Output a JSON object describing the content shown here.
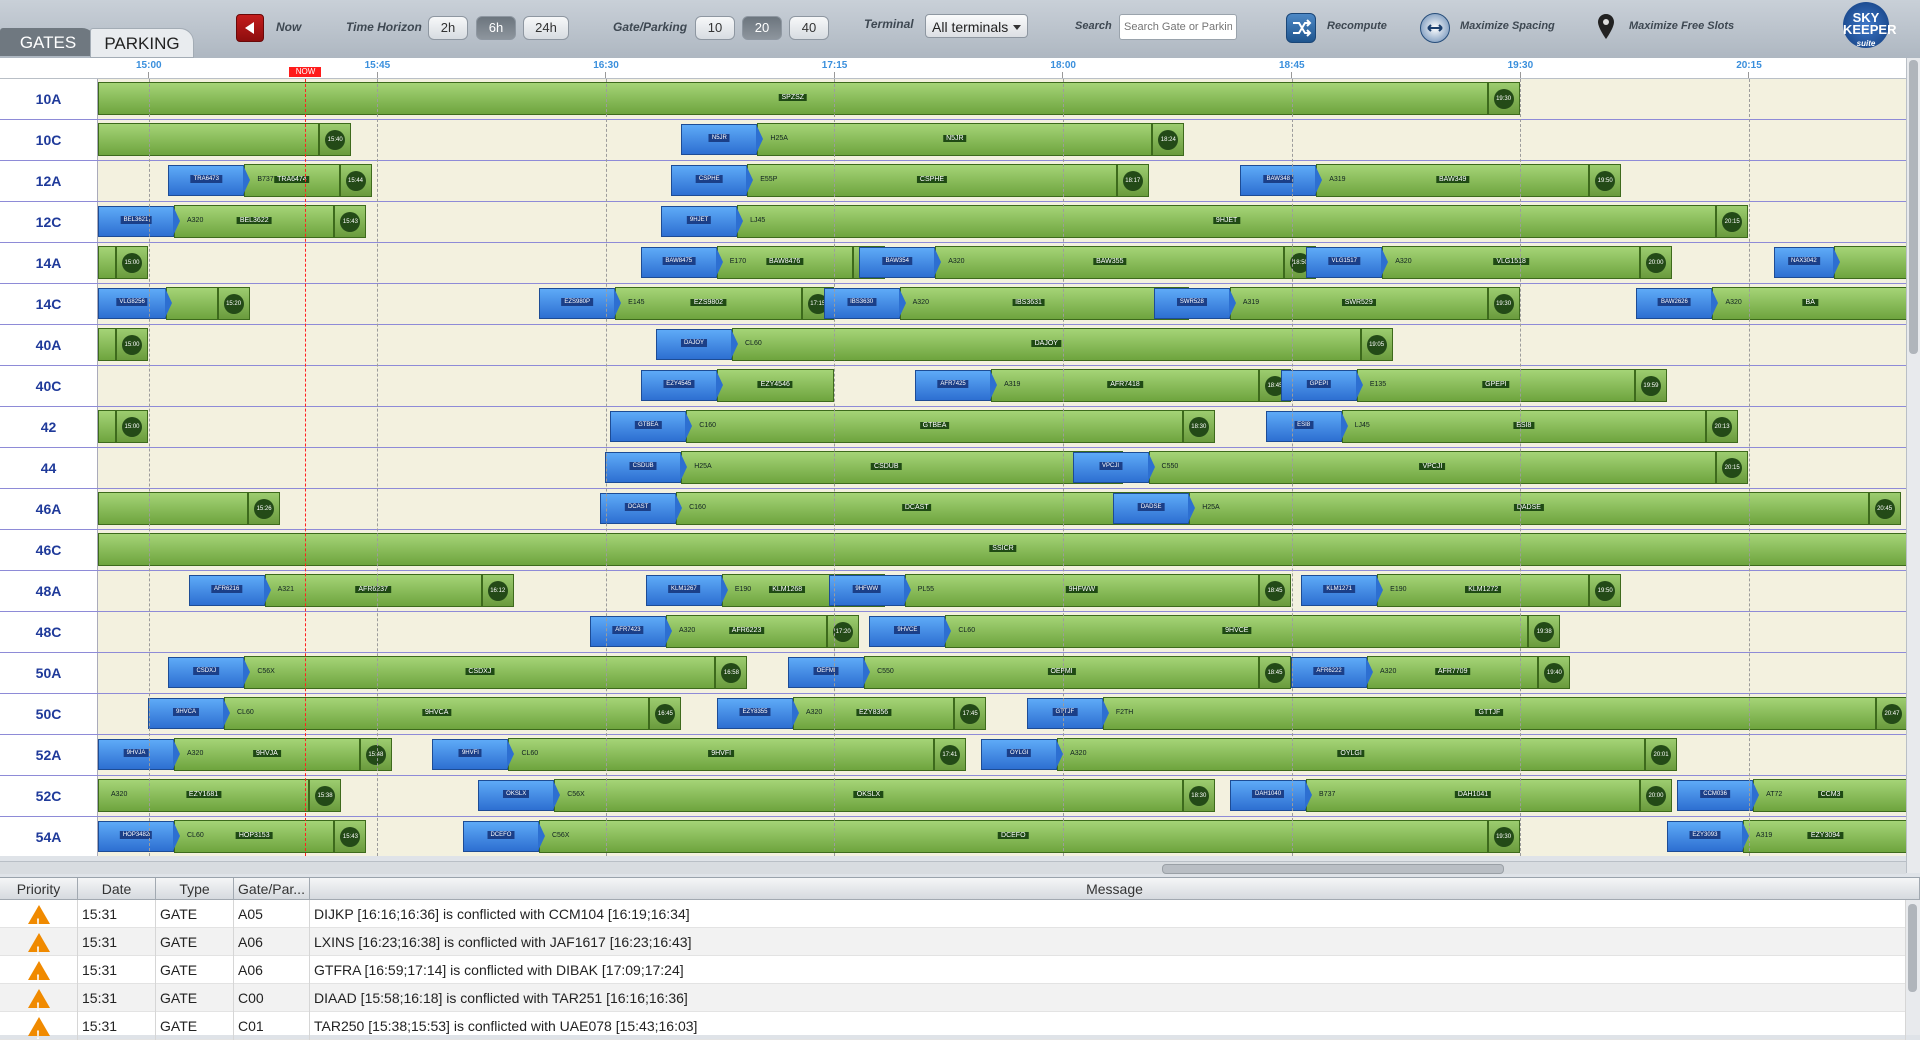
{
  "tabs": {
    "gates": "GATES",
    "parking": "PARKING"
  },
  "toolbar": {
    "now_label": "Now",
    "time_horizon_label": "Time Horizon",
    "time_horizon_options": [
      "2h",
      "6h",
      "24h"
    ],
    "time_horizon_selected": "6h",
    "gate_parking_label": "Gate/Parking",
    "gate_parking_options": [
      "10",
      "20",
      "40"
    ],
    "gate_parking_selected": "20",
    "terminal_label": "Terminal",
    "terminal_value": "All terminals",
    "search_label": "Search",
    "search_placeholder": "Search Gate or Parking",
    "recompute_label": "Recompute",
    "maximize_spacing_label": "Maximize Spacing",
    "maximize_free_slots_label": "Maximize Free Slots",
    "logo_text": "SKY KEEPER",
    "logo_subtext": "suite"
  },
  "time_axis": {
    "ticks": [
      "15:00",
      "15:45",
      "16:30",
      "17:15",
      "18:00",
      "18:45",
      "19:30",
      "20:15"
    ],
    "now_label": "NOW",
    "now_time": "15:31"
  },
  "gates": [
    {
      "name": "10A",
      "turns": [
        {
          "start": "14:40",
          "end": "19:30",
          "dep": "SPZSZ",
          "end_time": "19:30"
        }
      ]
    },
    {
      "name": "10C",
      "turns": [
        {
          "start": "14:40",
          "end": "15:40",
          "end_time": "15:40"
        },
        {
          "start": "16:45",
          "end": "18:24",
          "arr": "N5JR",
          "type": "H25A",
          "dep": "N5JR",
          "end_time": "18:24"
        }
      ]
    },
    {
      "name": "12A",
      "turns": [
        {
          "start": "14:40",
          "end": "14:50",
          "end_time": "14:50"
        },
        {
          "start": "15:04",
          "end": "15:44",
          "arr": "TRA6473",
          "type": "B737",
          "dep": "TRA6474",
          "end_time": "15:44"
        },
        {
          "start": "16:43",
          "end": "18:17",
          "arr": "CSPHE",
          "type": "E55P",
          "dep": "CSPHE",
          "end_time": "18:17"
        },
        {
          "start": "18:35",
          "end": "19:50",
          "arr": "BAW348",
          "type": "A319",
          "dep": "BAW349",
          "end_time": "19:50"
        }
      ]
    },
    {
      "name": "12C",
      "turns": [
        {
          "start": "14:40",
          "end": "14:50",
          "end_time": "14:50"
        },
        {
          "start": "14:50",
          "end": "15:43",
          "arr": "BEL3621",
          "type": "A320",
          "dep": "BEL3622",
          "end_time": "15:43"
        },
        {
          "start": "16:41",
          "end": "20:15",
          "arr": "9HJET",
          "type": "LJ45",
          "dep": "9HJET",
          "end_time": "20:15"
        }
      ]
    },
    {
      "name": "14A",
      "turns": [
        {
          "start": "14:40",
          "end": "15:00",
          "end_time": "15:00"
        },
        {
          "start": "16:37",
          "end": "17:25",
          "arr": "BAW8475",
          "type": "E170",
          "dep": "BAW8476",
          "end_time": "17:25"
        },
        {
          "start": "17:20",
          "end": "18:50",
          "arr": "BAW354",
          "type": "A320",
          "dep": "BAW355",
          "end_time": "18:50"
        },
        {
          "start": "18:48",
          "end": "20:00",
          "arr": "VLG1517",
          "type": "A320",
          "dep": "VLG1518",
          "end_time": "20:00"
        },
        {
          "start": "20:20",
          "end": "20:50",
          "arr": "NAX3042"
        }
      ]
    },
    {
      "name": "14C",
      "turns": [
        {
          "start": "14:40",
          "end": "15:20",
          "arr": "VLG8256",
          "end_time": "15:20"
        },
        {
          "start": "16:17",
          "end": "17:15",
          "arr": "EZS980P",
          "type": "E145",
          "dep": "EZS9802",
          "end_time": "17:15"
        },
        {
          "start": "17:13",
          "end": "18:25",
          "arr": "IBS3630",
          "type": "A320",
          "dep": "IBS3631",
          "end_time": "18:25"
        },
        {
          "start": "18:18",
          "end": "19:30",
          "arr": "SWR528",
          "type": "A319",
          "dep": "SWR529",
          "end_time": "19:30"
        },
        {
          "start": "19:53",
          "end": "20:50",
          "arr": "BAW2626",
          "type": "A320",
          "dep": "BA"
        }
      ]
    },
    {
      "name": "40A",
      "turns": [
        {
          "start": "14:40",
          "end": "15:00",
          "end_time": "15:00"
        },
        {
          "start": "16:40",
          "end": "19:05",
          "arr": "DAJOY",
          "type": "CL60",
          "dep": "DAJOY",
          "end_time": "19:05"
        }
      ]
    },
    {
      "name": "40C",
      "turns": [
        {
          "start": "16:37",
          "end": "17:15",
          "arr": "EZY4545",
          "dep": "EZY4546"
        },
        {
          "start": "17:31",
          "end": "18:45",
          "arr": "AFR7425",
          "type": "A319",
          "dep": "AFR7418",
          "end_time": "18:45"
        },
        {
          "start": "18:43",
          "end": "19:59",
          "arr": "GPEPI",
          "type": "E135",
          "dep": "GPEPI",
          "end_time": "19:59"
        }
      ]
    },
    {
      "name": "42",
      "turns": [
        {
          "start": "14:40",
          "end": "15:00",
          "end_time": "15:00"
        },
        {
          "start": "16:31",
          "end": "18:30",
          "arr": "GTBEA",
          "type": "C160",
          "dep": "GTBEA",
          "end_time": "18:30"
        },
        {
          "start": "18:40",
          "end": "20:13",
          "arr": "ESI8",
          "type": "LJ45",
          "dep": "ESI8",
          "end_time": "20:13"
        }
      ]
    },
    {
      "name": "44",
      "turns": [
        {
          "start": "16:30",
          "end": "18:12",
          "arr": "CSDUB",
          "type": "H25A",
          "dep": "CSDUB",
          "end_time": "18:12"
        },
        {
          "start": "18:02",
          "end": "20:15",
          "arr": "VPCJI",
          "type": "C550",
          "dep": "VPCJI",
          "end_time": "20:15"
        }
      ]
    },
    {
      "name": "46A",
      "turns": [
        {
          "start": "14:40",
          "end": "15:26",
          "end_time": "15:26"
        },
        {
          "start": "16:29",
          "end": "18:25",
          "arr": "DCAST",
          "type": "C160",
          "dep": "DCAST",
          "end_time": "18:25"
        },
        {
          "start": "18:10",
          "end": "20:45",
          "arr": "DADSE",
          "type": "H25A",
          "dep": "DADSE",
          "end_time": "20:45"
        }
      ]
    },
    {
      "name": "46C",
      "turns": [
        {
          "start": "14:40",
          "end": "20:50",
          "dep": "SSICR"
        }
      ]
    },
    {
      "name": "48A",
      "turns": [
        {
          "start": "15:08",
          "end": "16:12",
          "arr": "AFR6216",
          "type": "A321",
          "dep": "AFR6237",
          "end_time": "16:12"
        },
        {
          "start": "16:38",
          "end": "17:25",
          "arr": "KLM1267",
          "type": "E190",
          "dep": "KLM1268",
          "end_time": "17:25"
        },
        {
          "start": "17:14",
          "end": "18:45",
          "arr": "9HFWW",
          "type": "PL55",
          "dep": "9HFWW",
          "end_time": "18:45"
        },
        {
          "start": "18:47",
          "end": "19:50",
          "arr": "KLM1271",
          "type": "E190",
          "dep": "KLM1272",
          "end_time": "19:50"
        }
      ]
    },
    {
      "name": "48C",
      "turns": [
        {
          "start": "16:27",
          "end": "17:20",
          "arr": "AFR7423",
          "type": "A320",
          "dep": "AFR6223",
          "end_time": "17:20"
        },
        {
          "start": "17:22",
          "end": "19:38",
          "arr": "9HVCE",
          "type": "CL60",
          "dep": "9HVCE",
          "end_time": "19:38"
        }
      ]
    },
    {
      "name": "50A",
      "turns": [
        {
          "start": "15:04",
          "end": "16:58",
          "arr": "CSDXJ",
          "type": "C56X",
          "dep": "CSDXJ",
          "end_time": "16:58"
        },
        {
          "start": "17:06",
          "end": "18:45",
          "arr": "OEFMI",
          "type": "C550",
          "dep": "OEFMI",
          "end_time": "18:45"
        },
        {
          "start": "18:45",
          "end": "19:40",
          "arr": "AFR6222",
          "type": "A320",
          "dep": "AFR7709",
          "end_time": "19:40"
        }
      ]
    },
    {
      "name": "50C",
      "turns": [
        {
          "start": "15:00",
          "end": "16:45",
          "arr": "9HVCA",
          "type": "CL60",
          "dep": "9HVCA",
          "end_time": "16:45"
        },
        {
          "start": "16:52",
          "end": "17:45",
          "arr": "EZY8355",
          "type": "A320",
          "dep": "EZY8356",
          "end_time": "17:45"
        },
        {
          "start": "17:53",
          "end": "20:47",
          "arr": "GTTJF",
          "type": "F2TH",
          "dep": "GTTJF",
          "end_time": "20:47"
        }
      ]
    },
    {
      "name": "52A",
      "turns": [
        {
          "start": "14:49",
          "end": "15:48",
          "arr": "9HVJA",
          "type": "A320",
          "dep": "9HVJA",
          "end_time": "15:48"
        },
        {
          "start": "15:56",
          "end": "17:41",
          "arr": "9HVFI",
          "type": "CL60",
          "dep": "9HVFI",
          "end_time": "17:41"
        },
        {
          "start": "17:44",
          "end": "20:01",
          "arr": "OYLGI",
          "type": "A320",
          "dep": "OYLGI",
          "end_time": "20:01"
        }
      ]
    },
    {
      "name": "52C",
      "turns": [
        {
          "start": "14:40",
          "end": "15:38",
          "type": "A320",
          "dep": "EZY1681",
          "end_time": "15:38"
        },
        {
          "start": "16:05",
          "end": "18:30",
          "arr": "OKSLX",
          "type": "C56X",
          "dep": "OKSLX",
          "end_time": "18:30"
        },
        {
          "start": "18:33",
          "end": "20:00",
          "arr": "DAH1040",
          "type": "B737",
          "dep": "DAH1041",
          "end_time": "20:00"
        },
        {
          "start": "20:01",
          "end": "20:50",
          "arr": "CCM036",
          "type": "AT72",
          "dep": "CCM3"
        }
      ]
    },
    {
      "name": "54A",
      "turns": [
        {
          "start": "14:43",
          "end": "15:43",
          "arr": "HOP3482",
          "type": "CL60",
          "dep": "HOP3153",
          "end_time": "15:43"
        },
        {
          "start": "16:02",
          "end": "19:30",
          "arr": "DCEFO",
          "type": "C56X",
          "dep": "DCEFO",
          "end_time": "19:30"
        },
        {
          "start": "19:59",
          "end": "20:50",
          "arr": "EZY3093",
          "type": "A319",
          "dep": "EZY3094"
        }
      ]
    }
  ],
  "messages": {
    "columns": [
      "Priority",
      "Date",
      "Type",
      "Gate/Par...",
      "Message"
    ],
    "rows": [
      {
        "priority": "warning",
        "date": "15:31",
        "type": "GATE",
        "gate": "A05",
        "message": "DIJKP [16:16;16:36] is conflicted with CCM104 [16:19;16:34]"
      },
      {
        "priority": "warning",
        "date": "15:31",
        "type": "GATE",
        "gate": "A06",
        "message": "LXINS [16:23;16:38] is conflicted with JAF1617 [16:23;16:43]"
      },
      {
        "priority": "warning",
        "date": "15:31",
        "type": "GATE",
        "gate": "A06",
        "message": "GTFRA [16:59;17:14] is conflicted with DIBAK [17:09;17:24]"
      },
      {
        "priority": "warning",
        "date": "15:31",
        "type": "GATE",
        "gate": "C00",
        "message": "DIAAD [15:58;16:18] is conflicted with TAR251 [16:16;16:36]"
      },
      {
        "priority": "warning",
        "date": "15:31",
        "type": "GATE",
        "gate": "C01",
        "message": "TAR250 [15:38;15:53] is conflicted with UAE078 [15:43;16:03]"
      }
    ]
  },
  "colors": {
    "arrival": "#2d6fd1",
    "ground": "#7fb24f",
    "now": "#ff1b1b",
    "gate_label": "#1f3a9a"
  }
}
